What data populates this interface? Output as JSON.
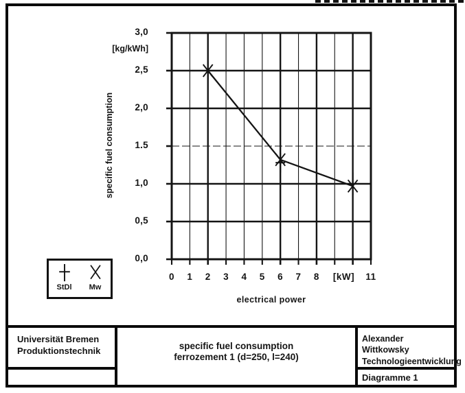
{
  "title_block": {
    "org_name": "Universität Bremen",
    "org_dept": "Produktionstechnik",
    "title_line1": "specific fuel consumption",
    "title_line2": "ferrozement 1 (d=250, l=240)",
    "author_name": "Alexander Wittkowsky",
    "author_dept": "Technologieentwicklung",
    "doc_label": "Diagramme 1"
  },
  "legend": {
    "items": [
      {
        "label": "StDl",
        "marker": "plus-marker"
      },
      {
        "label": "Mw",
        "marker": "x-marker"
      }
    ]
  },
  "chart_data": {
    "type": "line",
    "title": "specific fuel consumption ferrozement 1 (d=250, l=240)",
    "xlabel": "electrical power",
    "ylabel": "specific fuel consumption",
    "y_unit_label": "[kg/kWh]",
    "x_unit_label": "[kW]",
    "xlim": [
      0,
      11
    ],
    "ylim": [
      0.0,
      3.0
    ],
    "grid": true,
    "legend_position": "outside-bottom-left",
    "x_ticks": [
      {
        "value": 0,
        "label": "0"
      },
      {
        "value": 1,
        "label": "1"
      },
      {
        "value": 2,
        "label": "2"
      },
      {
        "value": 3,
        "label": "3"
      },
      {
        "value": 4,
        "label": "4"
      },
      {
        "value": 5,
        "label": "5"
      },
      {
        "value": 6,
        "label": "6"
      },
      {
        "value": 7,
        "label": "7"
      },
      {
        "value": 8,
        "label": "8"
      },
      {
        "value": 9.5,
        "label": "[kW]"
      },
      {
        "value": 11,
        "label": "11"
      }
    ],
    "y_ticks": [
      {
        "value": 3.0,
        "label": "3,0"
      },
      {
        "value": 2.5,
        "label": "2,5"
      },
      {
        "value": 2.0,
        "label": "2,0"
      },
      {
        "value": 1.5,
        "label": "1.5"
      },
      {
        "value": 1.0,
        "label": "1,0"
      },
      {
        "value": 0.5,
        "label": "0,5"
      },
      {
        "value": 0.0,
        "label": "0,0"
      }
    ],
    "emphasized_x_gridlines": [
      2,
      6,
      8,
      10
    ],
    "emphasized_y_gridlines": [
      0.5,
      1.0,
      2.0,
      2.5
    ],
    "series": [
      {
        "name": "StDl",
        "marker": "plus",
        "line": false,
        "points": [
          {
            "x": 2,
            "y": 2.5,
            "yerr": 0.12
          },
          {
            "x": 6,
            "y": 1.28,
            "yerr": 0.13
          },
          {
            "x": 10,
            "y": 1.0,
            "yerr": 0.15
          }
        ]
      },
      {
        "name": "Mw",
        "marker": "x",
        "line": true,
        "points": [
          {
            "x": 2,
            "y": 2.5
          },
          {
            "x": 6,
            "y": 1.32
          },
          {
            "x": 10,
            "y": 0.97
          }
        ]
      }
    ]
  }
}
